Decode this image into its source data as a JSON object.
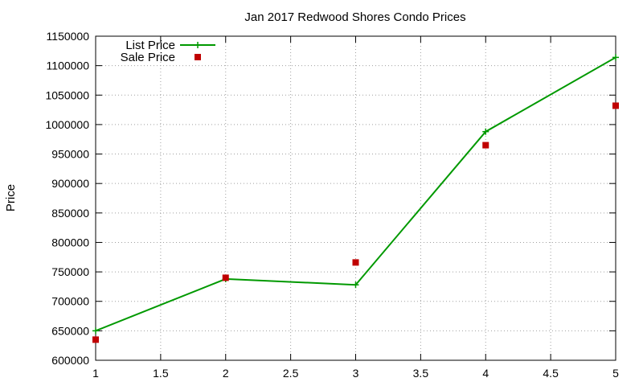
{
  "chart_data": {
    "type": "line",
    "title": "Jan 2017 Redwood Shores Condo Prices",
    "xlabel": "",
    "ylabel": "Price",
    "xlim": [
      1,
      5
    ],
    "ylim": [
      600000,
      1150000
    ],
    "xticks": [
      1,
      1.5,
      2,
      2.5,
      3,
      3.5,
      4,
      4.5,
      5
    ],
    "xtick_labels": [
      "1",
      "1.5",
      "2",
      "2.5",
      "3",
      "3.5",
      "4",
      "4.5",
      "5"
    ],
    "yticks": [
      600000,
      650000,
      700000,
      750000,
      800000,
      850000,
      900000,
      950000,
      1000000,
      1050000,
      1100000,
      1150000
    ],
    "ytick_labels": [
      "600000",
      "650000",
      "700000",
      "750000",
      "800000",
      "850000",
      "900000",
      "950000",
      "1000000",
      "1050000",
      "1100000",
      "1150000"
    ],
    "grid": true,
    "legend_position": "top-left",
    "series": [
      {
        "name": "List Price",
        "style": "linespoints",
        "marker": "plus",
        "color": "#009900",
        "x": [
          1,
          2,
          3,
          4,
          5
        ],
        "y": [
          650000,
          738000,
          728000,
          988000,
          1114000
        ]
      },
      {
        "name": "Sale Price",
        "style": "points",
        "marker": "square",
        "color": "#c00000",
        "x": [
          1,
          2,
          3,
          4,
          5
        ],
        "y": [
          635000,
          740000,
          766000,
          965000,
          1032000
        ]
      }
    ]
  }
}
